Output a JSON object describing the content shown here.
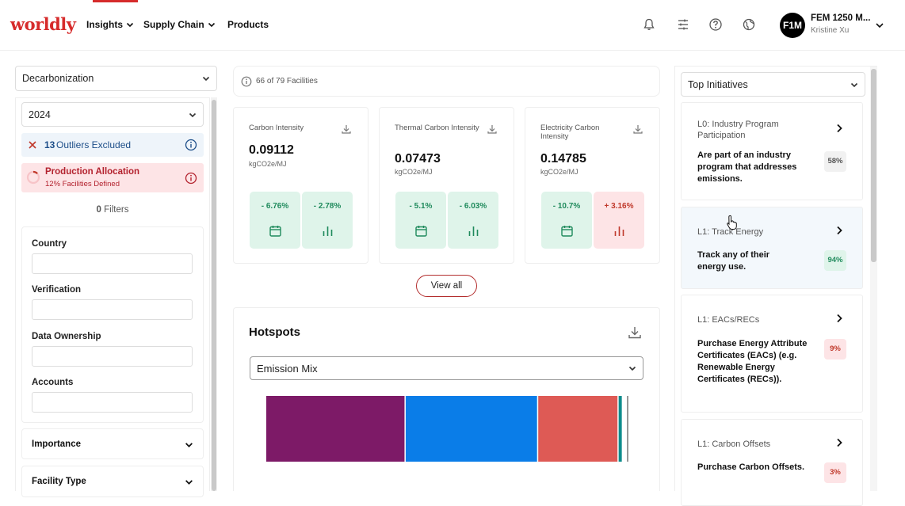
{
  "header": {
    "logo": "worldly",
    "nav": [
      {
        "label": "Insights"
      },
      {
        "label": "Supply Chain"
      },
      {
        "label": "Products"
      }
    ],
    "account": {
      "initials": "F1M",
      "name": "FEM 1250 M...",
      "user": "Kristine Xu"
    }
  },
  "left": {
    "module_select": "Decarbonization",
    "year_select": "2024",
    "outliers": {
      "count": "13",
      "label": "Outliers Excluded"
    },
    "production_allocation": {
      "title": "Production Allocation",
      "subtitle": "12% Facilities Defined"
    },
    "filters": {
      "count": "0",
      "label": "Filters"
    },
    "fields": [
      {
        "label": "Country",
        "value": ""
      },
      {
        "label": "Verification",
        "value": ""
      },
      {
        "label": "Data Ownership",
        "value": ""
      },
      {
        "label": "Accounts",
        "value": ""
      }
    ],
    "sections": [
      {
        "label": "Importance"
      },
      {
        "label": "Facility Type"
      }
    ]
  },
  "main": {
    "facilities": "66 of 79 Facilities",
    "metrics": [
      {
        "title": "Carbon Intensity",
        "value": "0.09112",
        "unit": "kgCO2e/MJ",
        "change_a": "- 6.76%",
        "change_b": "- 2.78%",
        "b_status": "good"
      },
      {
        "title": "Thermal Carbon Intensity",
        "value": "0.07473",
        "unit": "kgCO2e/MJ",
        "change_a": "- 5.1%",
        "change_b": "- 6.03%",
        "b_status": "good"
      },
      {
        "title": "Electricity Carbon Intensity",
        "value": "0.14785",
        "unit": "kgCO2e/MJ",
        "change_a": "- 10.7%",
        "change_b": "+ 3.16%",
        "b_status": "bad"
      }
    ],
    "view_all": "View all",
    "hotspots": {
      "title": "Hotspots",
      "select": "Emission Mix",
      "segments": [
        {
          "share": 0.385,
          "color": "#7d1a67"
        },
        {
          "share": 0.366,
          "color": "#0a7de8"
        },
        {
          "share": 0.222,
          "color": "#de5a55"
        },
        {
          "share": 0.012,
          "color": "#0e8c8c"
        },
        {
          "share": 0.015,
          "color": "#ffffff"
        }
      ]
    }
  },
  "right": {
    "select": "Top Initiatives",
    "initiatives": [
      {
        "level": "L0: Industry Program Participation",
        "desc": "Are part of an industry program that addresses emissions.",
        "pct": "58%",
        "status": "gray"
      },
      {
        "level": "L1: Track Energy",
        "desc": "Track any of their energy use.",
        "pct": "94%",
        "status": "green"
      },
      {
        "level": "L1: EACs/RECs",
        "desc": "Purchase Energy Attribute Certificates (EACs) (e.g. Renewable Energy Certificates (RECs)).",
        "pct": "9%",
        "status": "red"
      },
      {
        "level": "L1: Carbon Offsets",
        "desc": "Purchase Carbon Offsets.",
        "pct": "3%",
        "status": "red"
      }
    ]
  }
}
